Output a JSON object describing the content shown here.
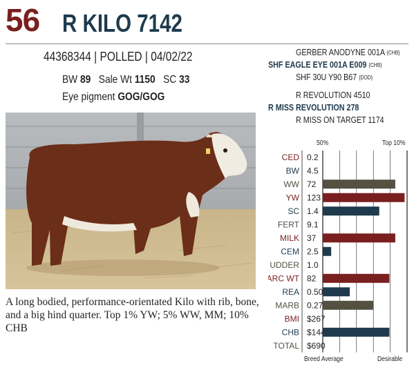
{
  "header": {
    "lot_number": "56",
    "animal_name": "R KILO 7142"
  },
  "info": {
    "registration_line": "44368344 | POLLED | 04/02/22",
    "bw_label": "BW",
    "bw_value": "89",
    "sale_wt_label": "Sale Wt",
    "sale_wt_value": "1150",
    "sc_label": "SC",
    "sc_value": "33",
    "eye_label": "Eye pigment",
    "eye_value": "GOG/GOG"
  },
  "pedigree": {
    "sire_sire": "GERBER ANODYNE 001A",
    "sire_sire_tag": "{CHB}",
    "sire": "SHF EAGLE EYE 001A E009",
    "sire_tag": "{CHB}",
    "sire_dam": "SHF 30U Y90 B67",
    "sire_dam_tag": "{DOD}",
    "dam_sire": "R REVOLUTION 4510",
    "dam": "R MISS REVOLUTION 278",
    "dam_dam": "R MISS ON TARGET 1174"
  },
  "description": "A long bodied, performance-orientated Kilo with rib, bone, and a big hind quarter. Top 1% YW; 5% WW, MM; 10% CHB",
  "colors": {
    "maroon": "#7a1f1f",
    "navy": "#1f3a4d",
    "olive": "#545042",
    "grid": "#231f20"
  },
  "chart_data": {
    "type": "bar",
    "header_left": "50%",
    "header_right": "Top 10%",
    "footer_left": "Breed Average",
    "footer_right": "Desirable",
    "traits": [
      {
        "name": "CED",
        "value": "0.2",
        "bar": 0,
        "color": "maroon"
      },
      {
        "name": "BW",
        "value": "4.5",
        "bar": 0,
        "color": "navy"
      },
      {
        "name": "WW",
        "value": "72",
        "bar": 0.86,
        "color": "olive"
      },
      {
        "name": "YW",
        "value": "123",
        "bar": 0.97,
        "color": "maroon"
      },
      {
        "name": "SC",
        "value": "1.4",
        "bar": 0.67,
        "color": "navy"
      },
      {
        "name": "FERT",
        "value": "9.1",
        "bar": 0,
        "color": "olive"
      },
      {
        "name": "MILK",
        "value": "37",
        "bar": 0.86,
        "color": "maroon"
      },
      {
        "name": "CEM",
        "value": "2.5",
        "bar": 0.1,
        "color": "navy"
      },
      {
        "name": "UDDER",
        "value": "1.0",
        "bar": 0,
        "color": "olive"
      },
      {
        "name": "CARC WT",
        "value": "82",
        "bar": 0.79,
        "color": "maroon"
      },
      {
        "name": "REA",
        "value": "0.50",
        "bar": 0.32,
        "color": "navy"
      },
      {
        "name": "MARB",
        "value": "0.27",
        "bar": 0.6,
        "color": "olive"
      },
      {
        "name": "BMI",
        "value": "$267",
        "bar": 0,
        "color": "maroon"
      },
      {
        "name": "CHB",
        "value": "$144",
        "bar": 0.79,
        "color": "navy"
      },
      {
        "name": "TOTAL",
        "value": "$690",
        "bar": 0,
        "color": "olive"
      }
    ]
  }
}
